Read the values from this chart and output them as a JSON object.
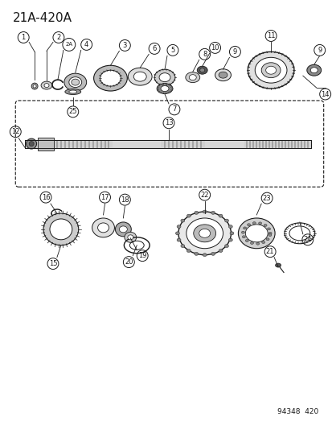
{
  "title": "21A-420A",
  "footer": "94348  420",
  "bg_color": "#ffffff",
  "line_color": "#1a1a1a",
  "fig_width": 4.14,
  "fig_height": 5.33,
  "dpi": 100,
  "img_path": null
}
